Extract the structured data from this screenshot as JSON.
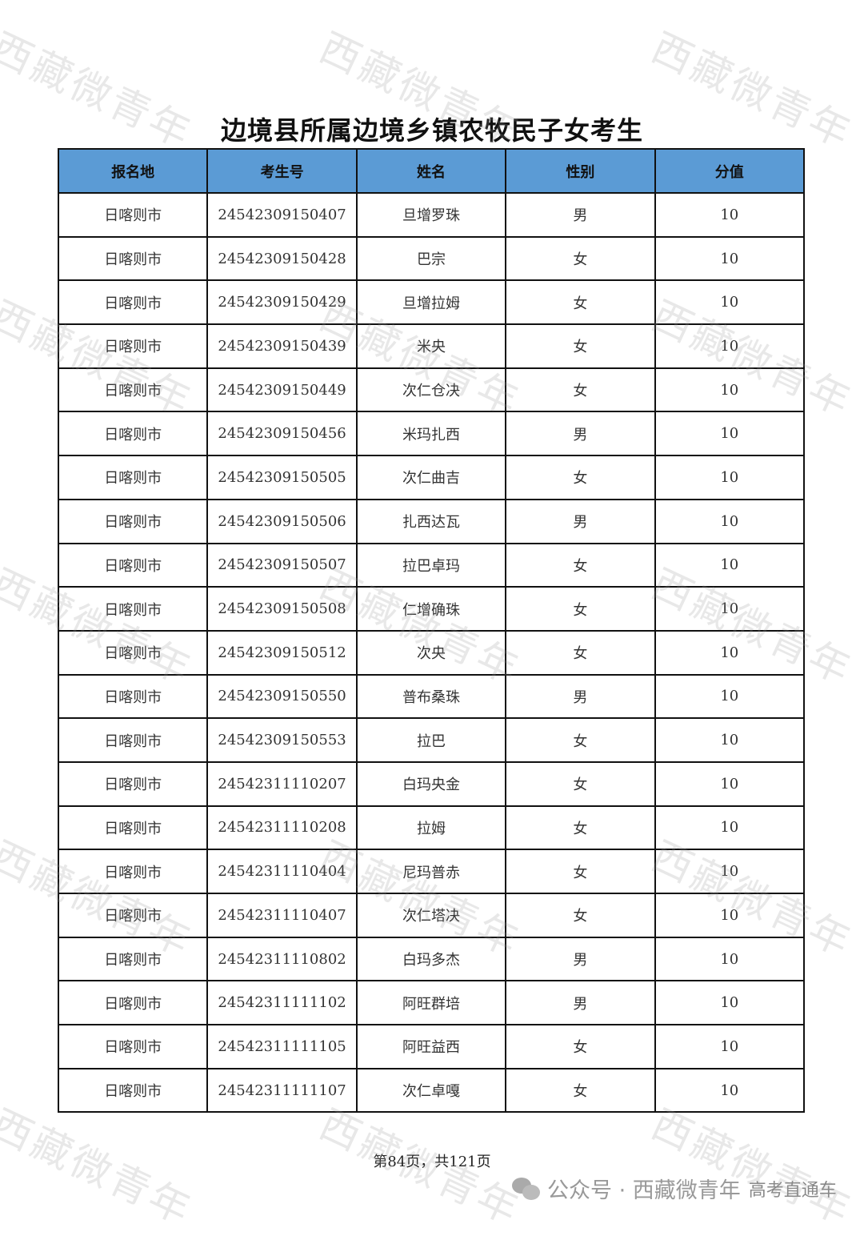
{
  "title": "边境县所属边境乡镇农牧民子女考生",
  "watermark": "西藏微青年",
  "table": {
    "headers": [
      "报名地",
      "考生号",
      "姓名",
      "性别",
      "分值"
    ],
    "rows": [
      [
        "日喀则市",
        "24542309150407",
        "旦增罗珠",
        "男",
        "10"
      ],
      [
        "日喀则市",
        "24542309150428",
        "巴宗",
        "女",
        "10"
      ],
      [
        "日喀则市",
        "24542309150429",
        "旦增拉姆",
        "女",
        "10"
      ],
      [
        "日喀则市",
        "24542309150439",
        "米央",
        "女",
        "10"
      ],
      [
        "日喀则市",
        "24542309150449",
        "次仁仓决",
        "女",
        "10"
      ],
      [
        "日喀则市",
        "24542309150456",
        "米玛扎西",
        "男",
        "10"
      ],
      [
        "日喀则市",
        "24542309150505",
        "次仁曲吉",
        "女",
        "10"
      ],
      [
        "日喀则市",
        "24542309150506",
        "扎西达瓦",
        "男",
        "10"
      ],
      [
        "日喀则市",
        "24542309150507",
        "拉巴卓玛",
        "女",
        "10"
      ],
      [
        "日喀则市",
        "24542309150508",
        "仁增确珠",
        "女",
        "10"
      ],
      [
        "日喀则市",
        "24542309150512",
        "次央",
        "女",
        "10"
      ],
      [
        "日喀则市",
        "24542309150550",
        "普布桑珠",
        "男",
        "10"
      ],
      [
        "日喀则市",
        "24542309150553",
        "拉巴",
        "女",
        "10"
      ],
      [
        "日喀则市",
        "24542311110207",
        "白玛央金",
        "女",
        "10"
      ],
      [
        "日喀则市",
        "24542311110208",
        "拉姆",
        "女",
        "10"
      ],
      [
        "日喀则市",
        "24542311110404",
        "尼玛普赤",
        "女",
        "10"
      ],
      [
        "日喀则市",
        "24542311110407",
        "次仁塔决",
        "女",
        "10"
      ],
      [
        "日喀则市",
        "24542311110802",
        "白玛多杰",
        "男",
        "10"
      ],
      [
        "日喀则市",
        "24542311111102",
        "阿旺群培",
        "男",
        "10"
      ],
      [
        "日喀则市",
        "24542311111105",
        "阿旺益西",
        "女",
        "10"
      ],
      [
        "日喀则市",
        "24542311111107",
        "次仁卓嘎",
        "女",
        "10"
      ]
    ]
  },
  "footer": {
    "page_info": "第84页，共121页"
  },
  "brand": {
    "text": "公众号 · 西藏微青年",
    "overlay": "高考直通车",
    "icon": "wechat-icon"
  },
  "colors": {
    "header_bg": "#5b9bd5"
  }
}
